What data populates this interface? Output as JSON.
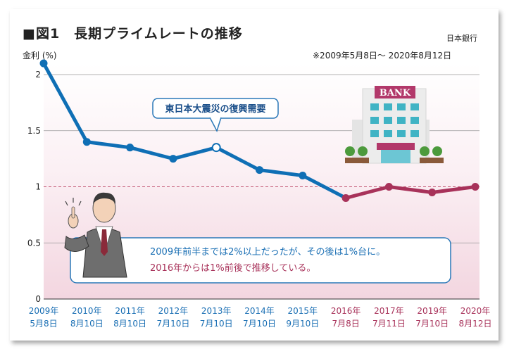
{
  "header": {
    "title": "■図1　長期プライムレートの推移",
    "source": "日本銀行",
    "period": "※2009年5月8日～ 2020年8月12日"
  },
  "callout": {
    "text": "東日本大震災の復興需要"
  },
  "bank_sign": {
    "text": "BANK"
  },
  "note": {
    "line1": "2009年前半までは2%以上だったが、その後は1%台に。",
    "line2": "2016年からは1%前後で推移している。"
  },
  "colors": {
    "blue": "#0f6fb5",
    "crimson": "#a8325a",
    "date_blue": "#1a6fb4",
    "date_red": "#a8325a"
  },
  "chart_data": {
    "type": "line",
    "title": "長期プライムレートの推移",
    "ylabel": "金利 (%)",
    "ylim": [
      0,
      2
    ],
    "yticks": [
      {
        "value": 0,
        "label": "0"
      },
      {
        "value": 0.5,
        "label": "0.5"
      },
      {
        "value": 1,
        "label": "1"
      },
      {
        "value": 1.5,
        "label": "1.5"
      },
      {
        "value": 2,
        "label": "2"
      }
    ],
    "reference_line": 1,
    "grid": true,
    "x": [
      {
        "year": "2009年",
        "date": "5月8日",
        "color": "blue"
      },
      {
        "year": "2010年",
        "date": "8月10日",
        "color": "blue"
      },
      {
        "year": "2011年",
        "date": "8月10日",
        "color": "blue"
      },
      {
        "year": "2012年",
        "date": "7月10日",
        "color": "blue"
      },
      {
        "year": "2013年",
        "date": "7月10日",
        "color": "blue"
      },
      {
        "year": "2014年",
        "date": "7月10日",
        "color": "blue"
      },
      {
        "year": "2015年",
        "date": "9月10日",
        "color": "blue"
      },
      {
        "year": "2016年",
        "date": "7月8日",
        "color": "red"
      },
      {
        "year": "2017年",
        "date": "7月11日",
        "color": "red"
      },
      {
        "year": "2019年",
        "date": "7月10日",
        "color": "red"
      },
      {
        "year": "2020年",
        "date": "8月12日",
        "color": "red"
      }
    ],
    "values": [
      2.1,
      1.4,
      1.35,
      1.25,
      1.35,
      1.15,
      1.1,
      0.9,
      1.0,
      0.95,
      1.0
    ],
    "highlight_index": 4,
    "segments": [
      {
        "from": 0,
        "to": 7,
        "color": "blue"
      },
      {
        "from": 7,
        "to": 10,
        "color": "crimson"
      }
    ]
  }
}
